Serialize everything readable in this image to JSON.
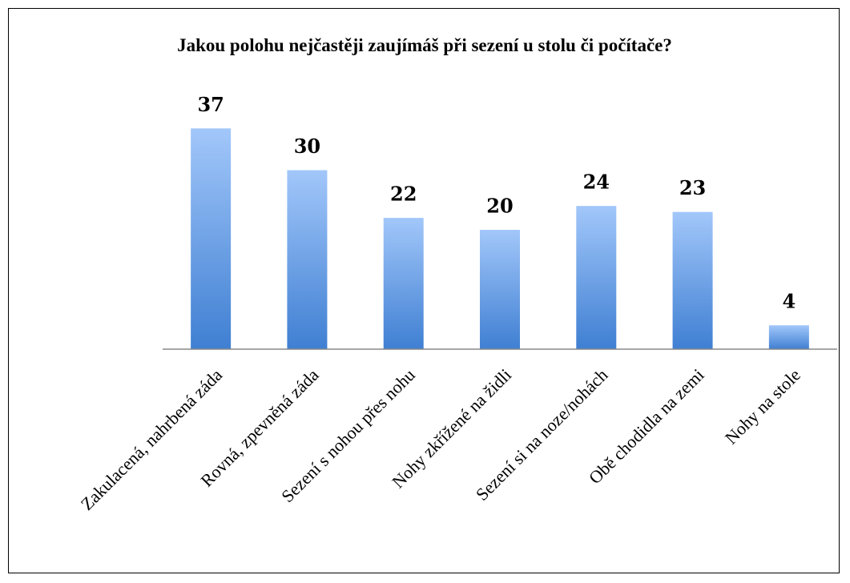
{
  "chart_data": {
    "type": "bar",
    "title": "Jakou polohu nejčastěji zaujímáš při sezení u stolu či počítače?",
    "categories": [
      "Zakulacená, nahrbená záda",
      "Rovná, zpevněná záda",
      "Sezení s nohou přes nohu",
      "Nohy zkřížené na židli",
      "Sezení si na noze/nohách",
      "Obě chodidla na zemi",
      "Nohy na stole"
    ],
    "values": [
      37,
      30,
      22,
      20,
      24,
      23,
      4
    ],
    "color": "#3f7fd2",
    "ylim": [
      0,
      40
    ]
  }
}
